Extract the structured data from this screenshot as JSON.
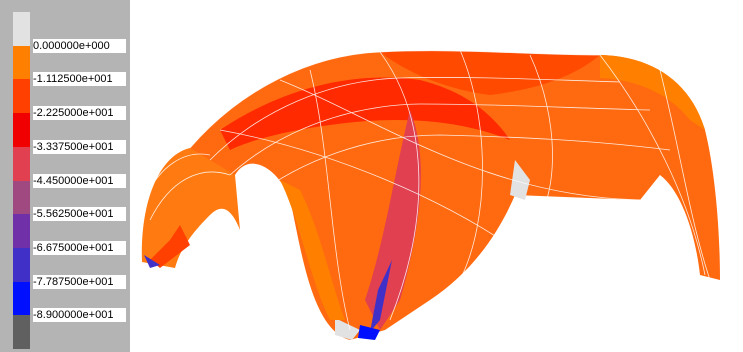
{
  "legend": {
    "colors": [
      "#e2e2e2",
      "#ff8000",
      "#ff4000",
      "#f00000",
      "#e04050",
      "#a04880",
      "#7030a8",
      "#4030c8",
      "#0010ff",
      "#606060"
    ],
    "labels": [
      "0.000000e+000",
      "-1.112500e+001",
      "-2.225000e+001",
      "-3.337500e+001",
      "-4.450000e+001",
      "-5.562500e+001",
      "-6.675000e+001",
      "-7.787500e+001",
      "-8.900000e+001"
    ]
  }
}
